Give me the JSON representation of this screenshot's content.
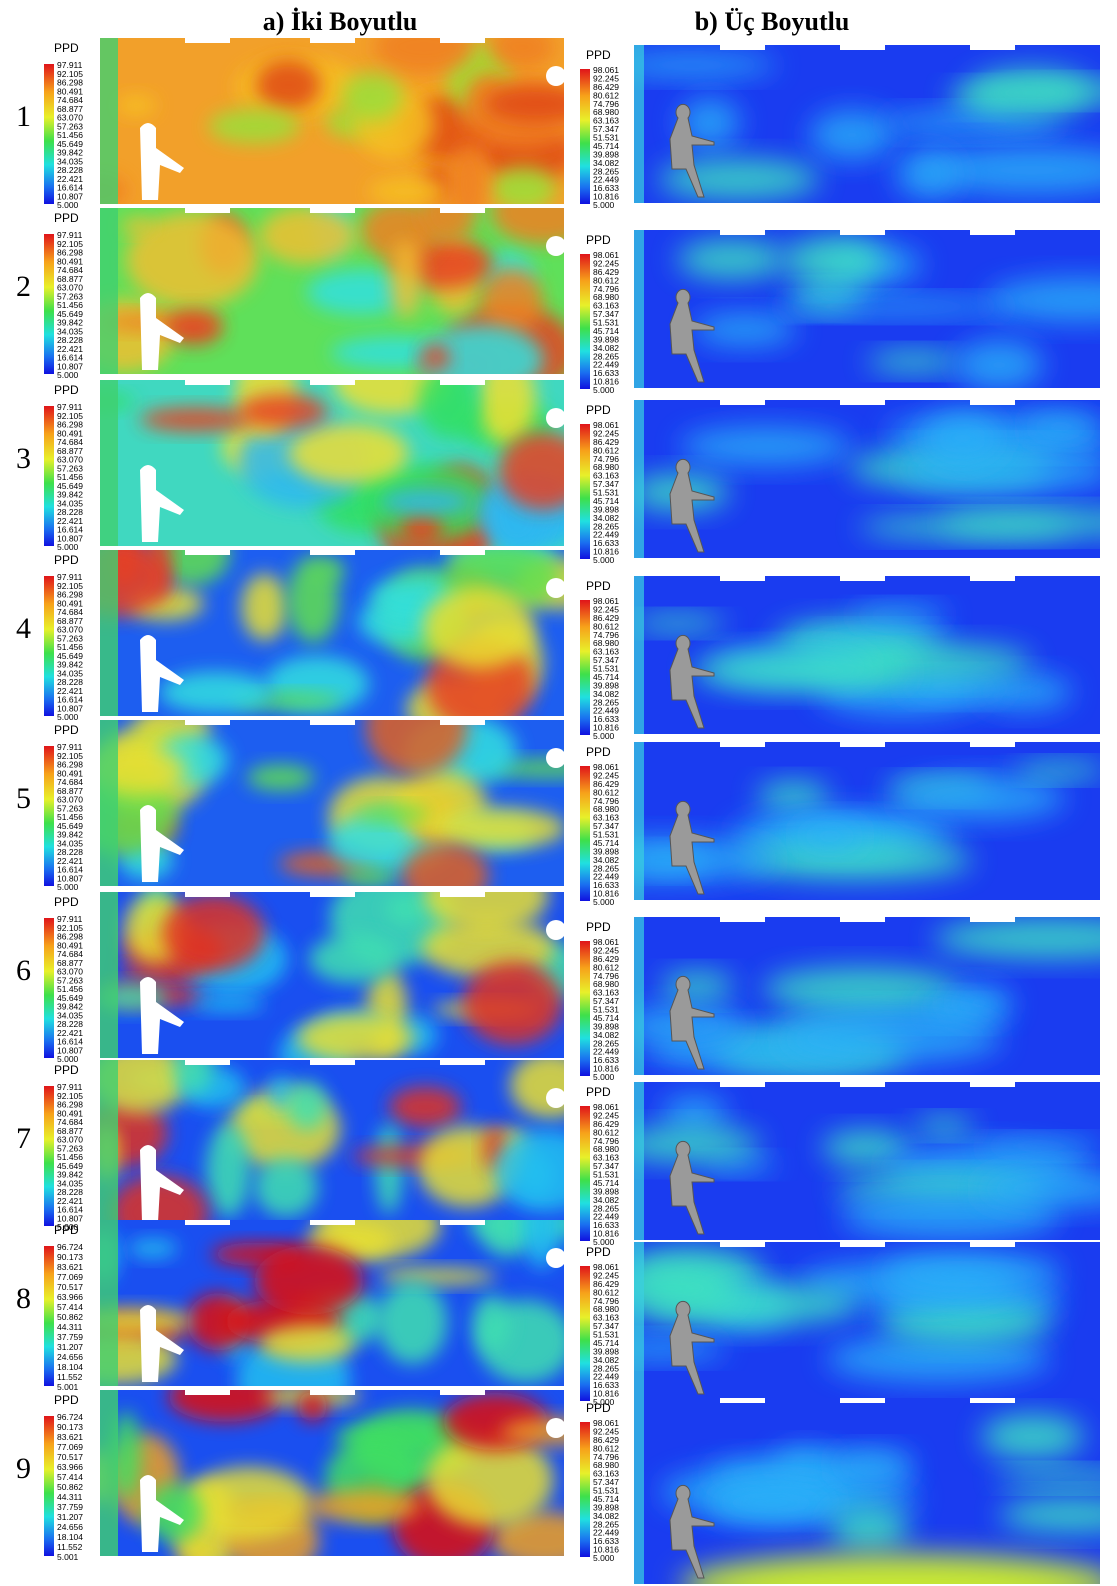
{
  "columns": [
    "a) İki Boyutlu",
    "b) Üç Boyutlu"
  ],
  "rows": [
    {
      "label": "1",
      "left": {
        "title": "PPD",
        "scale": [
          "97.911",
          "92.105",
          "86.298",
          "80.491",
          "74.684",
          "68.877",
          "63.070",
          "57.263",
          "51.456",
          "45.649",
          "39.842",
          "34.035",
          "28.228",
          "22.421",
          "16.614",
          "10.807",
          "5.000"
        ]
      },
      "right": {
        "title": "PPD",
        "scale": [
          "98.061",
          "92.245",
          "86.429",
          "80.612",
          "74.796",
          "68.980",
          "63.163",
          "57.347",
          "51.531",
          "45.714",
          "39.898",
          "34.082",
          "28.265",
          "22.449",
          "16.633",
          "10.816",
          "5.000"
        ]
      }
    },
    {
      "label": "2",
      "left": {
        "title": "PPD",
        "scale": [
          "97.911",
          "92.105",
          "86.298",
          "80.491",
          "74.684",
          "68.877",
          "63.070",
          "57.263",
          "51.456",
          "45.649",
          "39.842",
          "34.035",
          "28.228",
          "22.421",
          "16.614",
          "10.807",
          "5.000"
        ]
      },
      "right": {
        "title": "PPD",
        "scale": [
          "98.061",
          "92.245",
          "86.429",
          "80.612",
          "74.796",
          "68.980",
          "63.163",
          "57.347",
          "51.531",
          "45.714",
          "39.898",
          "34.082",
          "28.265",
          "22.449",
          "16.633",
          "10.816",
          "5.000"
        ]
      }
    },
    {
      "label": "3",
      "left": {
        "title": "PPD",
        "scale": [
          "97.911",
          "92.105",
          "86.298",
          "80.491",
          "74.684",
          "68.877",
          "63.070",
          "57.263",
          "51.456",
          "45.649",
          "39.842",
          "34.035",
          "28.228",
          "22.421",
          "16.614",
          "10.807",
          "5.000"
        ]
      },
      "right": {
        "title": "PPD",
        "scale": [
          "98.061",
          "92.245",
          "86.429",
          "80.612",
          "74.796",
          "68.980",
          "63.163",
          "57.347",
          "51.531",
          "45.714",
          "39.898",
          "34.082",
          "28.265",
          "22.449",
          "16.633",
          "10.816",
          "5.000"
        ]
      }
    },
    {
      "label": "4",
      "left": {
        "title": "PPD",
        "scale": [
          "97.911",
          "92.105",
          "86.298",
          "80.491",
          "74.684",
          "68.877",
          "63.070",
          "57.263",
          "51.456",
          "45.649",
          "39.842",
          "34.035",
          "28.228",
          "22.421",
          "16.614",
          "10.807",
          "5.000"
        ]
      },
      "right": {
        "title": "PPD",
        "scale": [
          "98.061",
          "92.245",
          "86.429",
          "80.612",
          "74.796",
          "68.980",
          "63.163",
          "57.347",
          "51.531",
          "45.714",
          "39.898",
          "34.082",
          "28.265",
          "22.449",
          "16.633",
          "10.816",
          "5.000"
        ]
      }
    },
    {
      "label": "5",
      "left": {
        "title": "PPD",
        "scale": [
          "97.911",
          "92.105",
          "86.298",
          "80.491",
          "74.684",
          "68.877",
          "63.070",
          "57.263",
          "51.456",
          "45.649",
          "39.842",
          "34.035",
          "28.228",
          "22.421",
          "16.614",
          "10.807",
          "5.000"
        ]
      },
      "right": {
        "title": "PPD",
        "scale": [
          "98.061",
          "92.245",
          "86.429",
          "80.612",
          "74.796",
          "68.980",
          "63.163",
          "57.347",
          "51.531",
          "45.714",
          "39.898",
          "34.082",
          "28.265",
          "22.449",
          "16.633",
          "10.816",
          "5.000"
        ]
      }
    },
    {
      "label": "6",
      "left": {
        "title": "PPD",
        "scale": [
          "97.911",
          "92.105",
          "86.298",
          "80.491",
          "74.684",
          "68.877",
          "63.070",
          "57.263",
          "51.456",
          "45.649",
          "39.842",
          "34.035",
          "28.228",
          "22.421",
          "16.614",
          "10.807",
          "5.000"
        ]
      },
      "right": {
        "title": "PPD",
        "scale": [
          "98.061",
          "92.245",
          "86.429",
          "80.612",
          "74.796",
          "68.980",
          "63.163",
          "57.347",
          "51.531",
          "45.714",
          "39.898",
          "34.082",
          "28.265",
          "22.449",
          "16.633",
          "10.816",
          "5.000"
        ]
      }
    },
    {
      "label": "7",
      "left": {
        "title": "PPD",
        "scale": [
          "97.911",
          "92.105",
          "86.298",
          "80.491",
          "74.684",
          "68.877",
          "63.070",
          "57.263",
          "51.456",
          "45.649",
          "39.842",
          "34.035",
          "28.228",
          "22.421",
          "16.614",
          "10.807",
          "5.000"
        ]
      },
      "right": {
        "title": "PPD",
        "scale": [
          "98.061",
          "92.245",
          "86.429",
          "80.612",
          "74.796",
          "68.980",
          "63.163",
          "57.347",
          "51.531",
          "45.714",
          "39.898",
          "34.082",
          "28.265",
          "22.449",
          "16.633",
          "10.816",
          "5.000"
        ]
      }
    },
    {
      "label": "8",
      "left": {
        "title": "PPD",
        "scale": [
          "96.724",
          "90.173",
          "83.621",
          "77.069",
          "70.517",
          "63.966",
          "57.414",
          "50.862",
          "44.311",
          "37.759",
          "31.207",
          "24.656",
          "18.104",
          "11.552",
          "5.001"
        ]
      },
      "right": {
        "title": "PPD",
        "scale": [
          "98.061",
          "92.245",
          "86.429",
          "80.612",
          "74.796",
          "68.980",
          "63.163",
          "57.347",
          "51.531",
          "45.714",
          "39.898",
          "34.082",
          "28.265",
          "22.449",
          "16.633",
          "10.816",
          "5.000"
        ]
      }
    },
    {
      "label": "9",
      "left": {
        "title": "PPD",
        "scale": [
          "96.724",
          "90.173",
          "83.621",
          "77.069",
          "70.517",
          "63.966",
          "57.414",
          "50.862",
          "44.311",
          "37.759",
          "31.207",
          "24.656",
          "18.104",
          "11.552",
          "5.001"
        ]
      },
      "right": {
        "title": "PPD",
        "scale": [
          "98.061",
          "92.245",
          "86.429",
          "80.612",
          "74.796",
          "68.980",
          "63.163",
          "57.347",
          "51.531",
          "45.714",
          "39.898",
          "34.082",
          "28.265",
          "22.449",
          "16.633",
          "10.816",
          "5.000"
        ]
      }
    }
  ]
}
